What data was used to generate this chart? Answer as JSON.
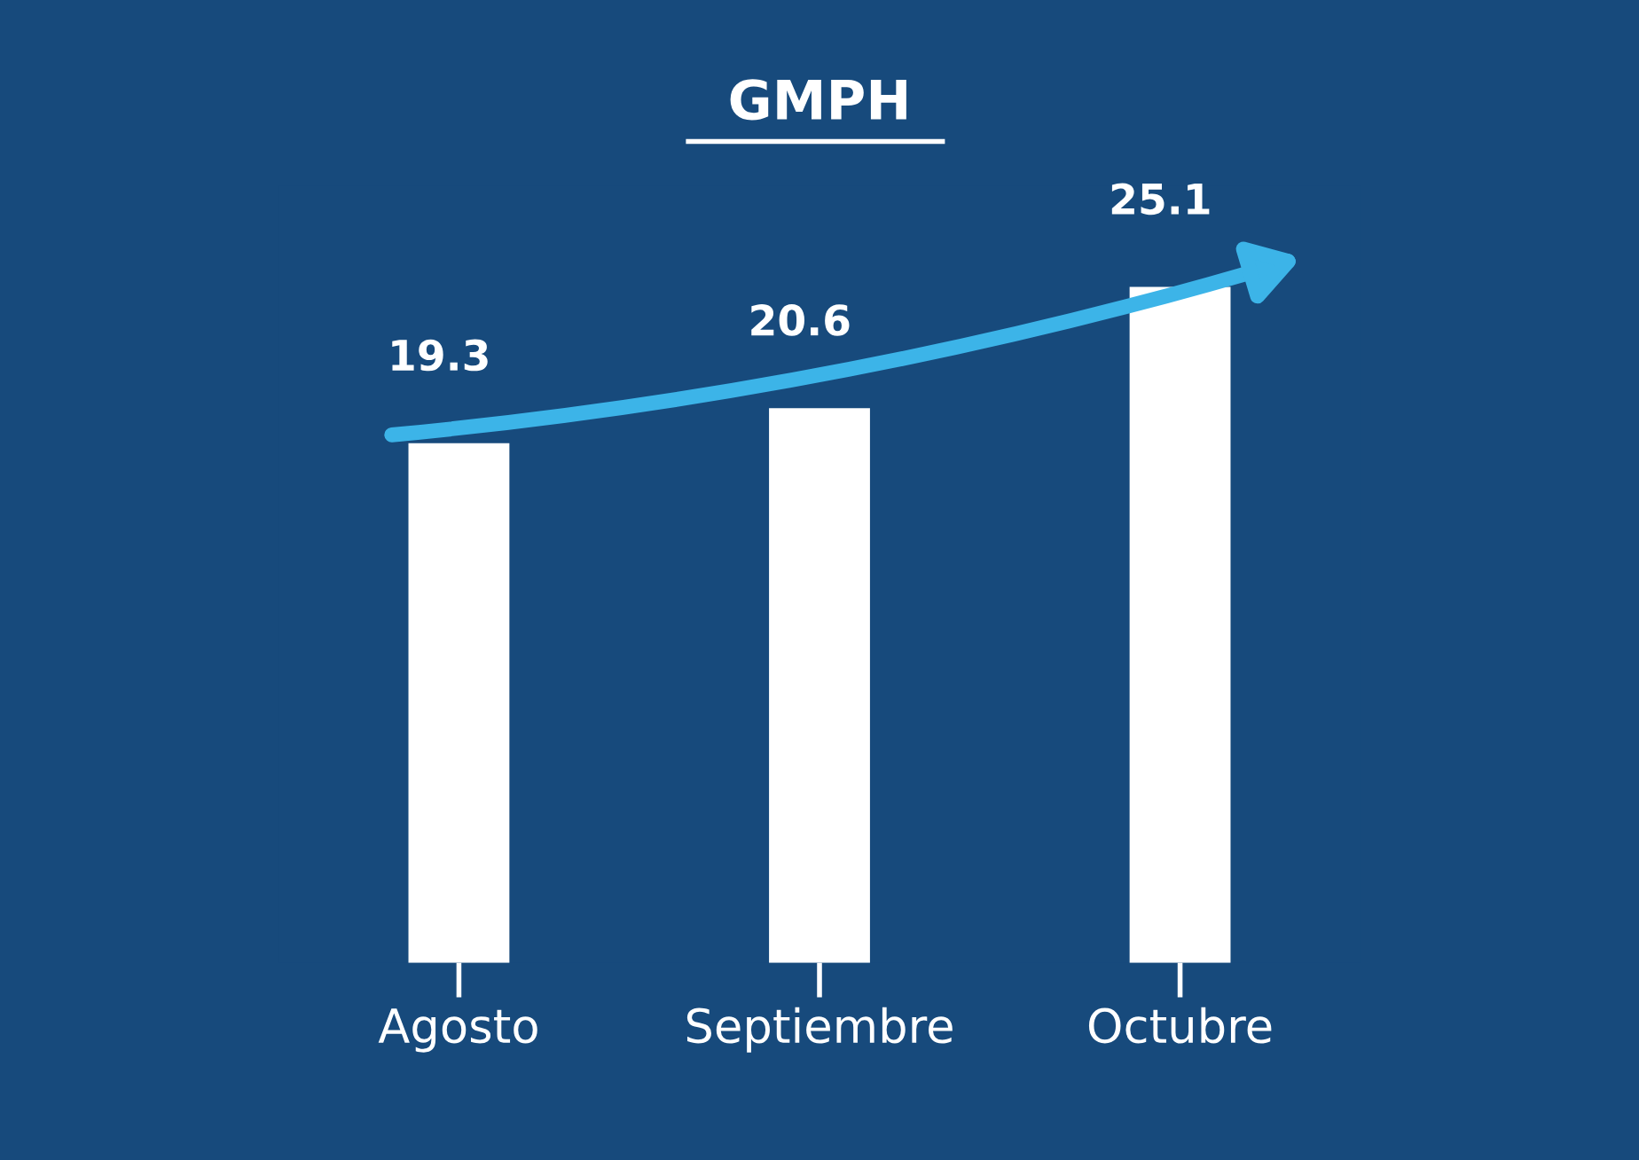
{
  "chart_data": {
    "type": "bar",
    "title": "GMPH",
    "categories": [
      "Agosto",
      "Septiembre",
      "Octubre"
    ],
    "values": [
      19.3,
      20.6,
      25.1
    ],
    "color": "#ffffff",
    "data_labels": true,
    "grid": false
  }
}
